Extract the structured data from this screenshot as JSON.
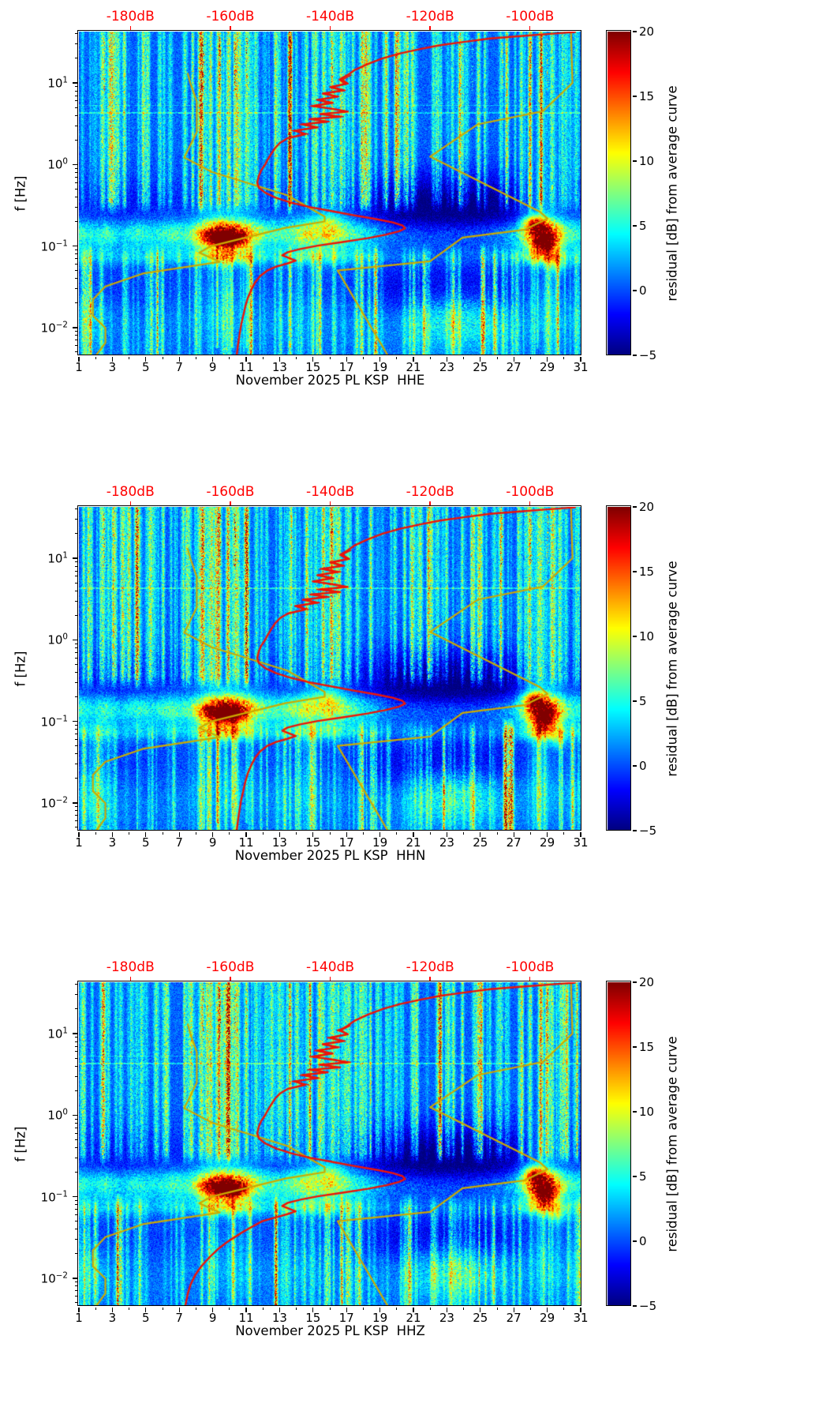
{
  "chart_data": {
    "type": "heatmap",
    "subtype": "seismic-noise-spectrogram",
    "n_panels": 3,
    "panels": [
      {
        "channel": "HHE",
        "xlabel": "November 2025 PL KSP  HHE",
        "seed": 11,
        "micro_scale": 1.0,
        "red_low_scale": 1.0,
        "red_top_scale": 1.0,
        "red_tail": "default"
      },
      {
        "channel": "HHN",
        "xlabel": "November 2025 PL KSP  HHN",
        "seed": 23,
        "micro_scale": 1.0,
        "red_low_scale": 0.9,
        "red_top_scale": 1.1,
        "red_tail": "default"
      },
      {
        "channel": "HHZ",
        "xlabel": "November 2025 PL KSP  HHZ",
        "seed": 37,
        "micro_scale": 0.95,
        "red_low_scale": 0.45,
        "red_top_scale": 0.7,
        "red_tail": "hhz"
      }
    ],
    "x": {
      "unit": "day of November 2025",
      "range": [
        1,
        31
      ],
      "tick_labels": [
        "1",
        "3",
        "5",
        "7",
        "9",
        "11",
        "13",
        "15",
        "17",
        "19",
        "21",
        "23",
        "25",
        "27",
        "29",
        "31"
      ],
      "tick_values": [
        1,
        3,
        5,
        7,
        9,
        11,
        13,
        15,
        17,
        19,
        21,
        23,
        25,
        27,
        29,
        31
      ]
    },
    "y": {
      "label": "f [Hz]",
      "scale": "log",
      "range_hz": [
        0.00457,
        42.6
      ],
      "tick_values": [
        10,
        1,
        0.1,
        0.01
      ],
      "tick_exponents": [
        "1",
        "0",
        "−1",
        "−2"
      ]
    },
    "top_db_axis": {
      "color": "#ff0000",
      "labels": [
        "-180dB",
        "-160dB",
        "-140dB",
        "-120dB",
        "-100dB"
      ],
      "values": [
        -180,
        -160,
        -140,
        -120,
        -100
      ],
      "range_db": [
        -190.3,
        -89.7
      ]
    },
    "colorbar": {
      "label": "residual [dB] from average curve",
      "range": [
        -5,
        20
      ],
      "tick_labels": [
        "20",
        "15",
        "10",
        "5",
        "0",
        "−5"
      ],
      "tick_values": [
        20,
        15,
        10,
        5,
        0,
        -5
      ],
      "colormap": "jet"
    },
    "curves": {
      "red_average_psd": {
        "color": "#ed1507",
        "points_f_db": [
          [
            42,
            -91
          ],
          [
            40,
            -96
          ],
          [
            37.5,
            -102
          ],
          [
            35,
            -108
          ],
          [
            32,
            -113
          ],
          [
            29,
            -118
          ],
          [
            26,
            -122
          ],
          [
            23,
            -126
          ],
          [
            20,
            -129.5
          ],
          [
            17,
            -132.5
          ],
          [
            14.5,
            -135
          ],
          [
            12.5,
            -136.5
          ],
          [
            11,
            -138
          ],
          [
            9.8,
            -136.5
          ],
          [
            8.9,
            -140
          ],
          [
            8.1,
            -137.5
          ],
          [
            7.4,
            -141.5
          ],
          [
            6.8,
            -138.5
          ],
          [
            6.2,
            -142.5
          ],
          [
            5.7,
            -139.5
          ],
          [
            5.2,
            -143.5
          ],
          [
            4.8,
            -139.5
          ],
          [
            4.45,
            -136.5
          ],
          [
            4.15,
            -142
          ],
          [
            3.85,
            -138
          ],
          [
            3.6,
            -144
          ],
          [
            3.35,
            -140.5
          ],
          [
            3.1,
            -145.5
          ],
          [
            2.85,
            -142.5
          ],
          [
            2.6,
            -147
          ],
          [
            2.35,
            -145
          ],
          [
            2.1,
            -148.5
          ],
          [
            1.85,
            -150
          ],
          [
            1.6,
            -151
          ],
          [
            1.35,
            -151.8
          ],
          [
            1.15,
            -152.5
          ],
          [
            1.0,
            -153
          ],
          [
            0.85,
            -153.8
          ],
          [
            0.72,
            -154.3
          ],
          [
            0.6,
            -154.6
          ],
          [
            0.52,
            -154.3
          ],
          [
            0.45,
            -153
          ],
          [
            0.39,
            -150.8
          ],
          [
            0.34,
            -147.8
          ],
          [
            0.3,
            -144
          ],
          [
            0.27,
            -140
          ],
          [
            0.24,
            -135.5
          ],
          [
            0.215,
            -131
          ],
          [
            0.195,
            -127.5
          ],
          [
            0.178,
            -125.5
          ],
          [
            0.165,
            -125
          ],
          [
            0.152,
            -126.2
          ],
          [
            0.138,
            -128.8
          ],
          [
            0.125,
            -132.5
          ],
          [
            0.112,
            -137.5
          ],
          [
            0.101,
            -142.5
          ],
          [
            0.092,
            -146
          ],
          [
            0.084,
            -148.5
          ],
          [
            0.077,
            -149.6
          ],
          [
            0.071,
            -148.2
          ],
          [
            0.066,
            -146.9
          ],
          [
            0.061,
            -148.6
          ],
          [
            0.056,
            -150.8
          ],
          [
            0.05,
            -152.6
          ],
          [
            0.043,
            -154
          ],
          [
            0.036,
            -155
          ],
          [
            0.029,
            -155.8
          ],
          [
            0.023,
            -156.5
          ],
          [
            0.018,
            -157
          ],
          [
            0.014,
            -157.4
          ],
          [
            0.011,
            -157.8
          ],
          [
            0.0085,
            -158.1
          ],
          [
            0.0065,
            -158.4
          ],
          [
            0.0046,
            -158.7
          ]
        ],
        "hhz_tail_f_db": [
          [
            0.05,
            -153.6
          ],
          [
            0.043,
            -155.6
          ],
          [
            0.036,
            -157.8
          ],
          [
            0.029,
            -160.2
          ],
          [
            0.023,
            -162.4
          ],
          [
            0.018,
            -164.2
          ],
          [
            0.014,
            -165.8
          ],
          [
            0.011,
            -167
          ],
          [
            0.0085,
            -167.9
          ],
          [
            0.0065,
            -168.5
          ],
          [
            0.0046,
            -169
          ]
        ]
      },
      "yellow_low_noise_model": {
        "color": "#ccaa00",
        "points_f_db": [
          [
            13,
            -168.5
          ],
          [
            10,
            -168.0
          ],
          [
            5.9,
            -166.7
          ],
          [
            2.5,
            -166.7
          ],
          [
            1.22,
            -169.2
          ],
          [
            0.81,
            -163.7
          ],
          [
            0.42,
            -148.6
          ],
          [
            0.23,
            -141.1
          ],
          [
            0.2,
            -141.1
          ],
          [
            0.167,
            -149.0
          ],
          [
            0.1,
            -163.8
          ],
          [
            0.083,
            -166.2
          ],
          [
            0.064,
            -162.1
          ],
          [
            0.046,
            -177.5
          ],
          [
            0.032,
            -185.0
          ],
          [
            0.022,
            -187.5
          ],
          [
            0.014,
            -187.5
          ],
          [
            0.0099,
            -185.0
          ],
          [
            0.0065,
            -185.0
          ],
          [
            0.0046,
            -186.8
          ]
        ]
      },
      "yellow_high_noise_model": {
        "color": "#ccaa00",
        "points_f_db": [
          [
            42,
            -91.8
          ],
          [
            10,
            -91.5
          ],
          [
            4.5,
            -97.4
          ],
          [
            3.1,
            -110.5
          ],
          [
            1.25,
            -120.0
          ],
          [
            0.263,
            -98.0
          ],
          [
            0.217,
            -96.5
          ],
          [
            0.159,
            -101.0
          ],
          [
            0.127,
            -113.5
          ],
          [
            0.065,
            -120.0
          ],
          [
            0.05,
            -138.5
          ],
          [
            0.0046,
            -128.5
          ]
        ]
      }
    },
    "heatmap_hints": {
      "residual_range_db": [
        -5,
        20
      ],
      "microseism_day_profile": [
        [
          1,
          6.5
        ],
        [
          1.8,
          5
        ],
        [
          2.6,
          7
        ],
        [
          3.5,
          4.5
        ],
        [
          4.5,
          6.5
        ],
        [
          5.5,
          5
        ],
        [
          6.5,
          7
        ],
        [
          7.5,
          6
        ],
        [
          8,
          9
        ],
        [
          8.6,
          14
        ],
        [
          9.2,
          18
        ],
        [
          9.8,
          20
        ],
        [
          10.3,
          18
        ],
        [
          10.9,
          15
        ],
        [
          11.5,
          10
        ],
        [
          12.2,
          7
        ],
        [
          13,
          6.5
        ],
        [
          14,
          8.5
        ],
        [
          14.7,
          11
        ],
        [
          15.3,
          9.5
        ],
        [
          15.9,
          12
        ],
        [
          16.5,
          10
        ],
        [
          17.2,
          7.5
        ],
        [
          18,
          6
        ],
        [
          19,
          4
        ],
        [
          20,
          3
        ],
        [
          21,
          3.2
        ],
        [
          22,
          2.8
        ],
        [
          23,
          3.2
        ],
        [
          24,
          2.8
        ],
        [
          25,
          3
        ],
        [
          26,
          3.6
        ],
        [
          27,
          5
        ],
        [
          27.6,
          10
        ],
        [
          28.1,
          17
        ],
        [
          28.6,
          21
        ],
        [
          29.1,
          19
        ],
        [
          29.6,
          13
        ],
        [
          30.2,
          7
        ],
        [
          31,
          5.5
        ]
      ],
      "quiet_day_profile": [
        [
          1,
          1.5
        ],
        [
          3,
          2.5
        ],
        [
          5,
          2
        ],
        [
          7,
          1.5
        ],
        [
          9,
          0
        ],
        [
          11,
          0.5
        ],
        [
          13,
          1.5
        ],
        [
          15,
          1
        ],
        [
          17,
          2
        ],
        [
          18.5,
          3.5
        ],
        [
          19.5,
          5
        ],
        [
          21,
          6
        ],
        [
          23,
          6.5
        ],
        [
          25,
          6
        ],
        [
          26.5,
          5
        ],
        [
          27.5,
          2.5
        ],
        [
          28.5,
          0
        ],
        [
          30,
          1
        ],
        [
          31,
          1.5
        ]
      ],
      "lowf_wash_day_profile": [
        [
          1,
          2
        ],
        [
          2,
          3
        ],
        [
          3,
          1
        ],
        [
          5,
          0.5
        ],
        [
          8,
          1
        ],
        [
          10,
          2
        ],
        [
          12,
          1
        ],
        [
          14,
          1.5
        ],
        [
          16,
          1
        ],
        [
          18,
          0.8
        ],
        [
          20,
          1.5
        ],
        [
          21.5,
          3.5
        ],
        [
          22.5,
          5
        ],
        [
          23.5,
          5.5
        ],
        [
          24.5,
          5
        ],
        [
          25.5,
          3.5
        ],
        [
          27,
          1.5
        ],
        [
          29,
          2
        ],
        [
          31,
          1.5
        ]
      ],
      "strong_columns": [
        [
          2.4,
          7,
          2.5
        ],
        [
          2.75,
          5,
          1.5
        ],
        [
          3.2,
          4,
          1.5
        ],
        [
          8.3,
          8,
          2.5
        ],
        [
          8.85,
          7,
          2
        ],
        [
          9.35,
          9,
          2.5
        ],
        [
          9.9,
          8,
          2
        ],
        [
          10.45,
          8,
          2.5
        ],
        [
          11.0,
          7,
          2
        ],
        [
          11.6,
          5,
          1.8
        ],
        [
          13.6,
          5.5,
          1.8
        ],
        [
          14.6,
          4,
          1.5
        ],
        [
          15.6,
          6,
          1.8
        ],
        [
          16.15,
          6.5,
          2.2
        ],
        [
          17.1,
          4,
          1.5
        ],
        [
          18.4,
          4.5,
          1.6
        ],
        [
          19.9,
          4,
          1.5
        ],
        [
          20.9,
          4.5,
          1.6
        ],
        [
          22.4,
          3.5,
          1.5
        ],
        [
          23.9,
          4,
          1.5
        ],
        [
          24.9,
          4,
          1.6
        ],
        [
          26.2,
          4.5,
          1.6
        ],
        [
          27.4,
          4,
          1.6
        ],
        [
          27.95,
          6,
          2
        ],
        [
          28.6,
          6.5,
          2.2
        ],
        [
          29.25,
          6,
          2
        ],
        [
          30.1,
          4.5,
          1.8
        ],
        [
          30.7,
          4,
          1.5
        ]
      ],
      "red_top_columns": [
        [
          2.5,
          7
        ],
        [
          8.4,
          9
        ],
        [
          9.4,
          11
        ],
        [
          10.3,
          9
        ],
        [
          11.0,
          7
        ],
        [
          13.7,
          4
        ],
        [
          16.1,
          5
        ],
        [
          24.5,
          4
        ],
        [
          26.3,
          5
        ],
        [
          28.0,
          6
        ],
        [
          29.0,
          7
        ]
      ],
      "red_low_columns": [
        [
          9.25,
          9
        ],
        [
          10.15,
          7
        ],
        [
          11.0,
          4
        ],
        [
          28.4,
          5
        ]
      ],
      "hotspots": [
        [
          9.4,
          -0.91,
          0.85,
          0.075,
          8
        ],
        [
          10.3,
          -0.93,
          0.5,
          0.06,
          6
        ],
        [
          15.9,
          -0.68,
          0.7,
          0.08,
          4
        ],
        [
          28.2,
          -0.72,
          0.45,
          0.07,
          9
        ],
        [
          28.9,
          -0.98,
          0.5,
          0.08,
          10
        ],
        [
          29.6,
          -1.22,
          0.35,
          0.08,
          5
        ]
      ],
      "spectral_line_hz": [
        4.33,
        5.3
      ]
    }
  }
}
